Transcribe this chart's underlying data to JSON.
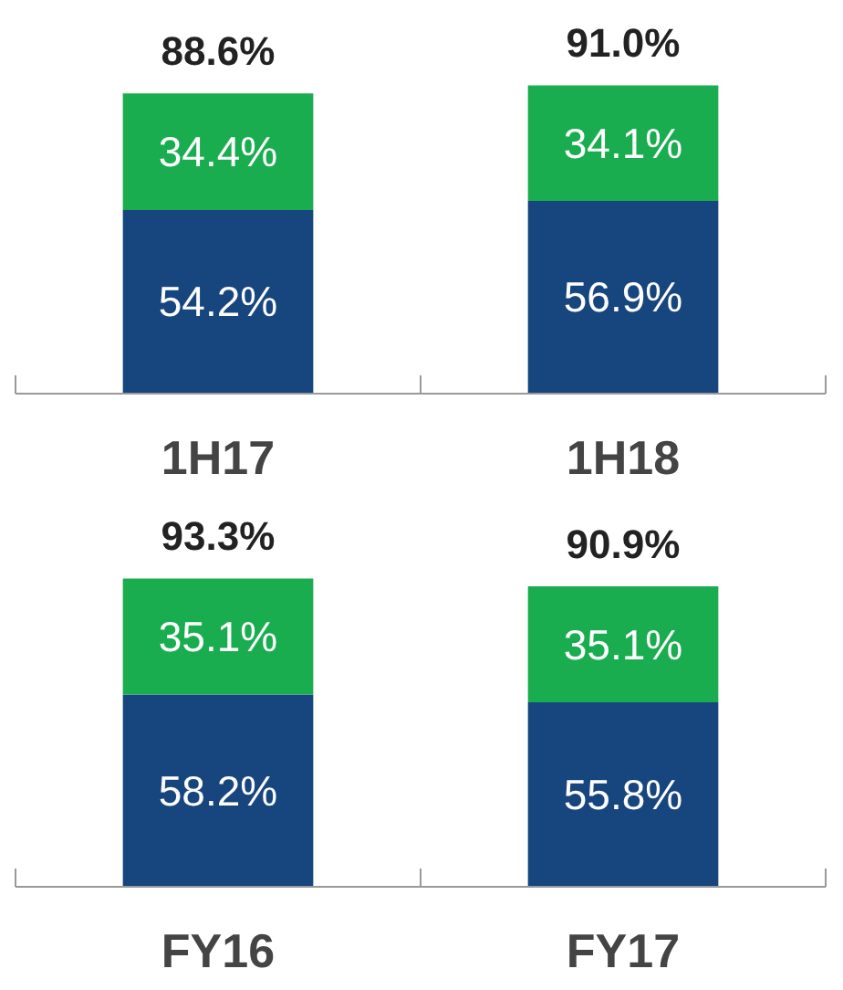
{
  "chart_data": [
    {
      "type": "bar",
      "stacked": true,
      "categories": [
        "1H17",
        "1H18"
      ],
      "tick_labels": "x",
      "grid": false,
      "series": [
        {
          "color": "#17467f",
          "values": [
            54.2,
            56.9
          ],
          "value_labels": [
            "54.2%",
            "56.9%"
          ]
        },
        {
          "color": "#1aad50",
          "values": [
            34.4,
            34.1
          ],
          "value_labels": [
            "34.4%",
            "34.1%"
          ]
        }
      ],
      "totals": [
        "88.6%",
        "91.0%"
      ]
    },
    {
      "type": "bar",
      "stacked": true,
      "categories": [
        "FY16",
        "FY17"
      ],
      "tick_labels": "x",
      "grid": false,
      "series": [
        {
          "color": "#17467f",
          "values": [
            58.2,
            55.8
          ],
          "value_labels": [
            "58.2%",
            "55.8%"
          ]
        },
        {
          "color": "#1aad50",
          "values": [
            35.1,
            35.1
          ],
          "value_labels": [
            "35.1%",
            "35.1%"
          ]
        }
      ],
      "totals": [
        "93.3%",
        "90.9%"
      ]
    }
  ]
}
